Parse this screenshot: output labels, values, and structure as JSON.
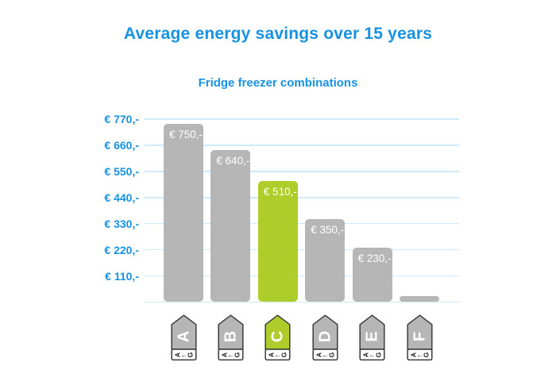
{
  "title": "Average energy savings over 15 years",
  "subtitle": "Fridge freezer combinations",
  "colors": {
    "page_bg": "#ffffff",
    "accent_blue": "#1792e3",
    "gridline_blue": "#cfe9fb",
    "bar_gray": "#b6b6b6",
    "highlight_green": "#aecd2a",
    "bar_label_white": "#ffffff",
    "tag_outline": "#3a3a3a",
    "tag_letter_white": "#ffffff",
    "tag_footer_bg": "#ffffff",
    "tag_footer_text": "#1a1a1a"
  },
  "chart_data": {
    "type": "bar",
    "title": "Average energy savings over 15 years",
    "subtitle": "Fridge freezer combinations",
    "categories": [
      "A",
      "B",
      "C",
      "D",
      "E",
      "F"
    ],
    "values": [
      750,
      640,
      510,
      350,
      230,
      25
    ],
    "bar_labels": [
      "€ 750,-",
      "€ 640,-",
      "€ 510,-",
      "€ 350,-",
      "€ 230,-",
      ""
    ],
    "highlight_index": 2,
    "highlighted_category": "C",
    "ylim": [
      0,
      770
    ],
    "grid": true,
    "legend": false,
    "y_ticks": [
      {
        "value": 770,
        "label": "€ 770,-"
      },
      {
        "value": 660,
        "label": "€ 660,-"
      },
      {
        "value": 550,
        "label": "€ 550,-"
      },
      {
        "value": 440,
        "label": "€ 440,-"
      },
      {
        "value": 330,
        "label": "€ 330,-"
      },
      {
        "value": 220,
        "label": "€ 220,-"
      },
      {
        "value": 110,
        "label": "€ 110,-"
      },
      {
        "value": 0,
        "label": ""
      }
    ],
    "x_axis_icon": {
      "type": "energy-label-tag",
      "footer_glyphs": [
        "A",
        "←",
        "G"
      ]
    }
  }
}
